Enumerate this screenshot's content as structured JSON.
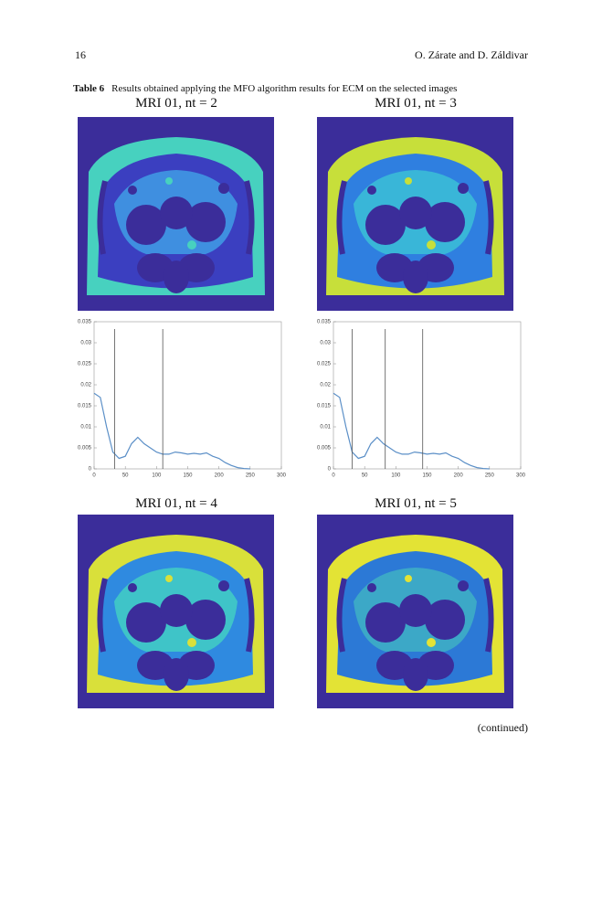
{
  "header": {
    "page_number": "16",
    "authors": "O. Zárate and D. Záldivar"
  },
  "table": {
    "label": "Table 6",
    "caption": "Results obtained applying the MFO algorithm results for ECM on the selected images",
    "panels": [
      {
        "title": "MRI 01, nt = 2"
      },
      {
        "title": "MRI 01, nt = 3"
      },
      {
        "title": "MRI 01, nt = 4"
      },
      {
        "title": "MRI 01, nt = 5"
      }
    ],
    "histograms": [
      {
        "type": "line",
        "color": "#5b8fc7",
        "x": [
          0,
          10,
          20,
          30,
          40,
          50,
          60,
          70,
          80,
          90,
          100,
          110,
          120,
          130,
          140,
          150,
          160,
          170,
          180,
          190,
          200,
          210,
          220,
          230,
          240,
          250
        ],
        "values": [
          0.018,
          0.017,
          0.01,
          0.004,
          0.0025,
          0.003,
          0.006,
          0.0075,
          0.006,
          0.005,
          0.004,
          0.0035,
          0.0035,
          0.004,
          0.0038,
          0.0035,
          0.0037,
          0.0035,
          0.0038,
          0.003,
          0.0025,
          0.0015,
          0.0008,
          0.0003,
          0.0001,
          0
        ],
        "thresholds": [
          33,
          110
        ],
        "xlim": [
          0,
          300
        ],
        "ylim": [
          0,
          0.035
        ],
        "xticks": [
          0,
          50,
          100,
          150,
          200,
          250,
          300
        ],
        "yticks": [
          0,
          0.005,
          0.01,
          0.015,
          0.02,
          0.025,
          0.03,
          0.035
        ]
      },
      {
        "type": "line",
        "color": "#5b8fc7",
        "x": [
          0,
          10,
          20,
          30,
          40,
          50,
          60,
          70,
          80,
          90,
          100,
          110,
          120,
          130,
          140,
          150,
          160,
          170,
          180,
          190,
          200,
          210,
          220,
          230,
          240,
          250
        ],
        "values": [
          0.018,
          0.017,
          0.01,
          0.004,
          0.0025,
          0.003,
          0.006,
          0.0075,
          0.006,
          0.005,
          0.004,
          0.0035,
          0.0035,
          0.004,
          0.0038,
          0.0035,
          0.0037,
          0.0035,
          0.0038,
          0.003,
          0.0025,
          0.0015,
          0.0008,
          0.0003,
          0.0001,
          0
        ],
        "thresholds": [
          30,
          83,
          143
        ],
        "xlim": [
          0,
          300
        ],
        "ylim": [
          0,
          0.035
        ],
        "xticks": [
          0,
          50,
          100,
          150,
          200,
          250,
          300
        ],
        "yticks": [
          0,
          0.005,
          0.01,
          0.015,
          0.02,
          0.025,
          0.03,
          0.035
        ]
      }
    ]
  },
  "footer": {
    "note": "(continued)"
  }
}
